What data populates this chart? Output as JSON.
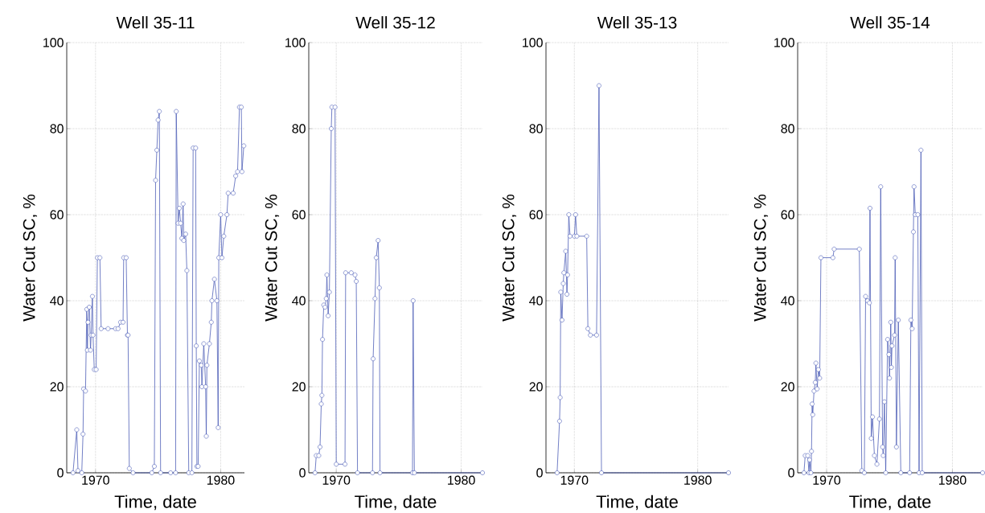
{
  "chart_data": [
    {
      "type": "line",
      "title": "Well 35-11",
      "xlabel": "Time, date",
      "ylabel": "Water Cut SC, %",
      "color": "#4f5fb8",
      "marker": "circle",
      "grid": true,
      "xlim": [
        1967.7,
        1981.9
      ],
      "ylim": [
        0,
        100
      ],
      "xticks": [
        1970,
        1980
      ],
      "yticks": [
        0,
        20,
        40,
        60,
        80,
        100
      ],
      "x": [
        1968.2,
        1968.5,
        1968.6,
        1968.9,
        1969.0,
        1969.05,
        1969.2,
        1969.3,
        1969.35,
        1969.4,
        1969.5,
        1969.6,
        1969.65,
        1969.75,
        1969.8,
        1969.9,
        1970.05,
        1970.15,
        1970.35,
        1970.45,
        1971.0,
        1971.6,
        1971.8,
        1972.0,
        1972.2,
        1972.25,
        1972.45,
        1972.55,
        1972.6,
        1972.7,
        1973.0,
        1974.5,
        1974.7,
        1974.8,
        1974.9,
        1975.0,
        1975.1,
        1975.2,
        1976.0,
        1976.4,
        1976.45,
        1976.6,
        1976.7,
        1976.8,
        1976.9,
        1977.0,
        1977.05,
        1977.2,
        1977.3,
        1977.45,
        1977.7,
        1977.8,
        1978.0,
        1978.05,
        1978.1,
        1978.2,
        1978.3,
        1978.45,
        1978.5,
        1978.65,
        1978.8,
        1978.85,
        1978.9,
        1979.1,
        1979.25,
        1979.3,
        1979.5,
        1979.7,
        1979.8,
        1979.85,
        1980.0,
        1980.1,
        1980.25,
        1980.5,
        1980.6,
        1981.0,
        1981.2,
        1981.35,
        1981.5,
        1981.65,
        1981.7,
        1981.85
      ],
      "values": [
        0,
        10,
        0.5,
        0,
        9,
        19.5,
        19,
        38,
        28.5,
        35,
        38.5,
        28.5,
        32,
        41,
        32,
        24,
        24,
        50,
        50,
        33.5,
        33.5,
        33.5,
        33.5,
        35,
        35,
        50,
        50,
        32,
        32,
        1,
        0,
        0,
        1.5,
        68,
        75,
        82,
        84,
        0,
        0,
        0,
        84,
        58,
        61.5,
        58,
        54.5,
        62.5,
        54,
        55.5,
        47,
        0,
        0,
        75.5,
        75.5,
        29.5,
        1.5,
        1.5,
        26,
        25,
        20,
        30,
        20,
        8.5,
        25,
        30,
        35,
        40,
        45,
        40,
        10.5,
        50,
        60,
        50,
        55,
        60,
        65,
        65,
        69,
        70,
        85,
        85,
        70,
        76
      ]
    },
    {
      "type": "line",
      "title": "Well 35-12",
      "xlabel": "Time, date",
      "ylabel": "Water Cut SC, %",
      "color": "#4f5fb8",
      "marker": "circle",
      "grid": true,
      "xlim": [
        1967.8,
        1981.7
      ],
      "ylim": [
        0,
        100
      ],
      "xticks": [
        1970,
        1980
      ],
      "yticks": [
        0,
        20,
        40,
        60,
        80,
        100
      ],
      "x": [
        1968.3,
        1968.4,
        1968.6,
        1968.7,
        1968.8,
        1968.85,
        1968.9,
        1969.0,
        1969.1,
        1969.2,
        1969.25,
        1969.35,
        1969.45,
        1969.6,
        1969.65,
        1969.9,
        1970.0,
        1970.7,
        1970.75,
        1971.2,
        1971.5,
        1971.6,
        1971.7,
        1972.9,
        1972.95,
        1973.1,
        1973.2,
        1973.35,
        1973.45,
        1973.5,
        1976.1,
        1976.15,
        1976.25,
        1981.7
      ],
      "values": [
        0,
        4,
        4,
        6,
        16,
        18,
        31,
        39,
        38.5,
        40.5,
        46,
        36.5,
        42,
        80,
        85,
        85,
        2,
        2,
        46.5,
        46.5,
        46,
        44.5,
        0,
        0,
        26.5,
        40.5,
        50,
        54,
        43,
        0,
        0,
        40,
        0,
        0
      ]
    },
    {
      "type": "line",
      "title": "Well 35-13",
      "xlabel": "Time, date",
      "ylabel": "Water Cut SC, %",
      "color": "#4f5fb8",
      "marker": "circle",
      "grid": true,
      "xlim": [
        1967.7,
        1982.5
      ],
      "ylim": [
        0,
        100
      ],
      "xticks": [
        1970,
        1980
      ],
      "yticks": [
        0,
        20,
        40,
        60,
        80,
        100
      ],
      "x": [
        1968.6,
        1968.8,
        1968.85,
        1968.9,
        1969.0,
        1969.1,
        1969.15,
        1969.3,
        1969.4,
        1969.45,
        1969.55,
        1969.65,
        1970.0,
        1970.1,
        1970.2,
        1971.0,
        1971.1,
        1971.3,
        1971.8,
        1972.0,
        1972.2,
        1982.5
      ],
      "values": [
        0,
        12,
        17.5,
        42,
        35.5,
        44,
        46.5,
        51.5,
        41.5,
        46,
        60,
        55,
        55,
        60,
        55,
        55,
        33.5,
        32,
        32,
        90,
        0,
        0
      ]
    },
    {
      "type": "line",
      "title": "Well 35-14",
      "xlabel": "Time, date",
      "ylabel": "Water Cut SC, %",
      "color": "#4f5fb8",
      "marker": "circle",
      "grid": true,
      "xlim": [
        1967.7,
        1982.4
      ],
      "ylim": [
        0,
        100
      ],
      "xticks": [
        1970,
        1980
      ],
      "yticks": [
        0,
        20,
        40,
        60,
        80,
        100
      ],
      "x": [
        1968.2,
        1968.3,
        1968.5,
        1968.6,
        1968.65,
        1968.75,
        1968.8,
        1968.85,
        1968.9,
        1969.0,
        1969.1,
        1969.15,
        1969.25,
        1969.35,
        1969.45,
        1969.55,
        1970.5,
        1970.6,
        1972.6,
        1972.8,
        1973.0,
        1973.1,
        1973.25,
        1973.4,
        1973.45,
        1973.55,
        1973.65,
        1973.8,
        1974.0,
        1974.2,
        1974.3,
        1974.45,
        1974.5,
        1974.6,
        1974.7,
        1974.85,
        1974.95,
        1975.0,
        1975.1,
        1975.15,
        1975.2,
        1975.4,
        1975.45,
        1975.55,
        1975.7,
        1975.9,
        1976.6,
        1976.7,
        1976.8,
        1976.9,
        1976.95,
        1977.05,
        1977.25,
        1977.35,
        1977.5,
        1977.6,
        1982.4
      ],
      "values": [
        0,
        4,
        4,
        0,
        3,
        0,
        5,
        16,
        13.5,
        19,
        21,
        25.5,
        19.5,
        24,
        22,
        50,
        50,
        52,
        52,
        0.5,
        0,
        41,
        40,
        39.5,
        61.5,
        8,
        13,
        4,
        2,
        12.5,
        66.5,
        6,
        4,
        16.5,
        0,
        31,
        27.5,
        22,
        35,
        24.5,
        29.5,
        32,
        50,
        6,
        35.5,
        0,
        0,
        35.5,
        33.5,
        56,
        66.5,
        60,
        60,
        0,
        75,
        0,
        0
      ]
    }
  ]
}
